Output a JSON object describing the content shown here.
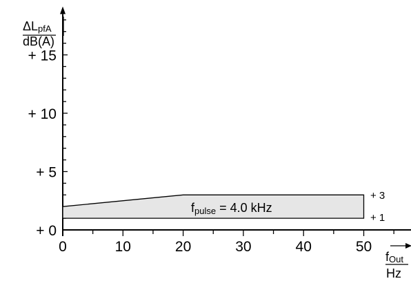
{
  "chart_data": {
    "type": "area",
    "y_label": {
      "main": "ΔL",
      "sub": "pfA",
      "unit": "dB(A)"
    },
    "x_label": {
      "main": "f",
      "sub": "Out",
      "unit": "Hz"
    },
    "x_ticks": [
      "0",
      "10",
      "20",
      "30",
      "40",
      "50"
    ],
    "x_tick_values": [
      0,
      10,
      20,
      30,
      40,
      50
    ],
    "y_ticks": [
      "+ 0",
      "+ 5",
      "+ 10",
      "+ 15"
    ],
    "y_tick_values": [
      0,
      5,
      10,
      15
    ],
    "xlim": [
      0,
      56
    ],
    "ylim": [
      0,
      18.5
    ],
    "band": {
      "upper": [
        {
          "x": 0,
          "y": 2
        },
        {
          "x": 20,
          "y": 3
        },
        {
          "x": 50,
          "y": 3
        }
      ],
      "lower": [
        {
          "x": 0,
          "y": 1
        },
        {
          "x": 50,
          "y": 1
        }
      ],
      "fill": "#e6e6e6",
      "stroke": "#000000"
    },
    "band_label": {
      "main": "f",
      "sub": "pulse",
      "rest": " = 4.0 kHz"
    },
    "band_annotations": [
      "+ 3",
      "+ 1"
    ],
    "grid": false
  }
}
